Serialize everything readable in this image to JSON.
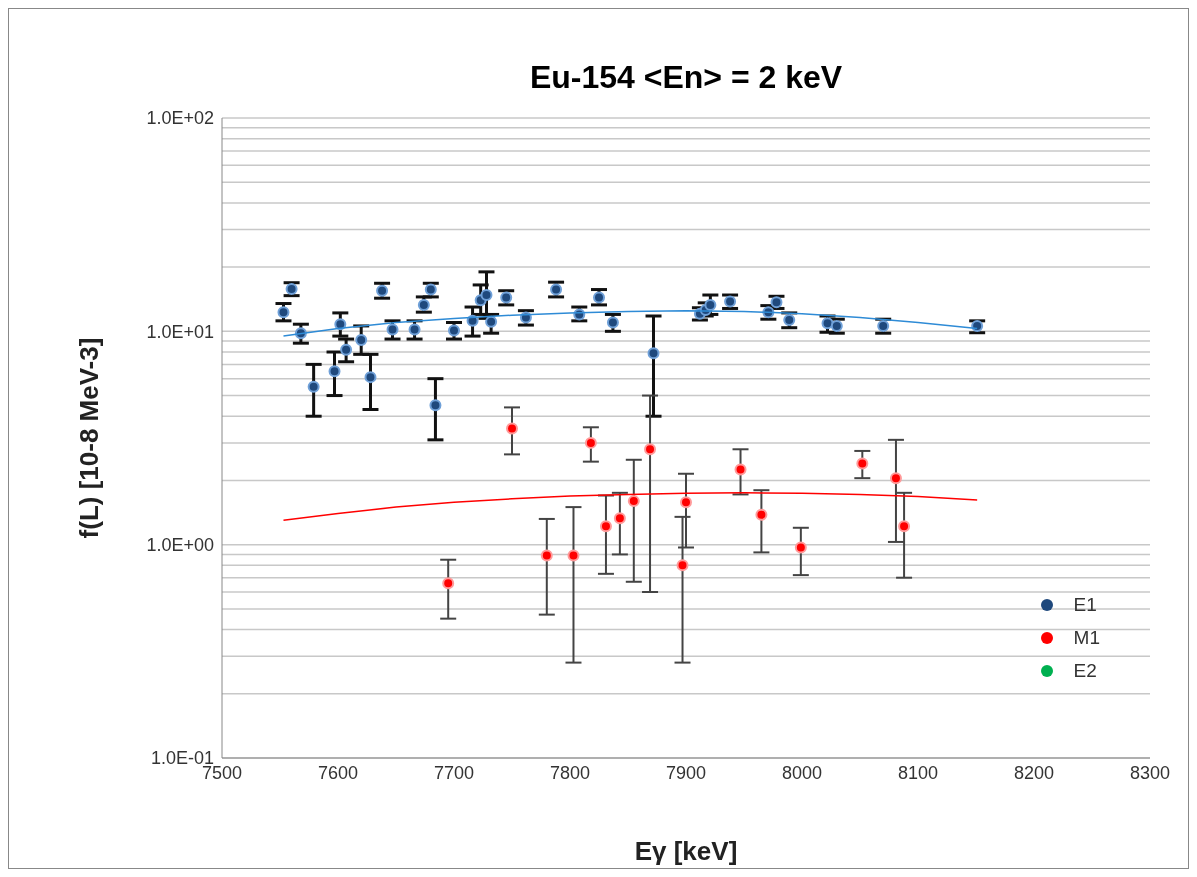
{
  "chart_data": {
    "type": "scatter",
    "title": "Eu-154 <En> = 2 keV",
    "xlabel": "Eγ [keV]",
    "ylabel": "f(L) [10-8 MeV-3]",
    "log": "y",
    "grid": "y",
    "legend": "right",
    "xlim": [
      7500,
      8300
    ],
    "xticks": [
      7500,
      7600,
      7700,
      7800,
      7900,
      8000,
      8100,
      8200,
      8300
    ],
    "ylim": [
      0.1,
      100
    ],
    "yticks": [
      {
        "value": 0.1,
        "label": "1.0E-01"
      },
      {
        "value": 0.2,
        "label": null
      },
      {
        "value": 0.3,
        "label": null
      },
      {
        "value": 0.4,
        "label": null
      },
      {
        "value": 0.5,
        "label": null
      },
      {
        "value": 0.6,
        "label": null
      },
      {
        "value": 0.7,
        "label": null
      },
      {
        "value": 0.8,
        "label": null
      },
      {
        "value": 0.9,
        "label": null
      },
      {
        "value": 1,
        "label": "1.0E+00"
      },
      {
        "value": 2,
        "label": null
      },
      {
        "value": 3,
        "label": null
      },
      {
        "value": 4,
        "label": null
      },
      {
        "value": 5,
        "label": null
      },
      {
        "value": 6,
        "label": null
      },
      {
        "value": 7,
        "label": null
      },
      {
        "value": 8,
        "label": null
      },
      {
        "value": 9,
        "label": null
      },
      {
        "value": 10,
        "label": "1.0E+01"
      },
      {
        "value": 20,
        "label": null
      },
      {
        "value": 30,
        "label": null
      },
      {
        "value": 40,
        "label": null
      },
      {
        "value": 50,
        "label": null
      },
      {
        "value": 60,
        "label": null
      },
      {
        "value": 70,
        "label": null
      },
      {
        "value": 80,
        "label": null
      },
      {
        "value": 90,
        "label": null
      },
      {
        "value": 100,
        "label": "1.0E+02"
      }
    ],
    "series": [
      {
        "name": "E1",
        "marker": "circle",
        "color": "#1f497d",
        "x": [
          7553,
          7560,
          7568,
          7579,
          7597,
          7602,
          7607,
          7620,
          7628,
          7638,
          7647,
          7666,
          7674,
          7680,
          7684,
          7700,
          7716,
          7723,
          7728,
          7732,
          7745,
          7762,
          7788,
          7808,
          7825,
          7837,
          7872,
          7912,
          7917,
          7921,
          7938,
          7971,
          7978,
          7989,
          8022,
          8030,
          8070,
          8151
        ],
        "values": [
          12.3,
          15.8,
          9.8,
          5.5,
          6.5,
          10.8,
          8.2,
          9.1,
          6.1,
          15.5,
          10.2,
          10.2,
          13.3,
          15.7,
          4.5,
          10.1,
          11.2,
          14,
          14.8,
          11.1,
          14.4,
          11.6,
          15.7,
          12,
          14.4,
          11,
          7.9,
          12.1,
          12.6,
          13.3,
          13.8,
          12.3,
          13.7,
          11.3,
          10.9,
          10.6,
          10.6,
          10.6
        ],
        "errors": [
          [
            11.2,
            13.5
          ],
          [
            14.7,
            16.9
          ],
          [
            8.8,
            10.8
          ],
          [
            4,
            7
          ],
          [
            5,
            8
          ],
          [
            9.5,
            12.2
          ],
          [
            7.2,
            9.2
          ],
          [
            7.8,
            10.6
          ],
          [
            4.3,
            7.8
          ],
          [
            14.3,
            16.8
          ],
          [
            9.2,
            11.2
          ],
          [
            9.2,
            11.2
          ],
          [
            12.3,
            14.5
          ],
          [
            14.5,
            16.8
          ],
          [
            3.1,
            6
          ],
          [
            9.2,
            11
          ],
          [
            9.5,
            13
          ],
          [
            12,
            16.5
          ],
          [
            11.5,
            19
          ],
          [
            9.8,
            12
          ],
          [
            13.3,
            15.5
          ],
          [
            10.7,
            12.5
          ],
          [
            14.5,
            17
          ],
          [
            11.2,
            13
          ],
          [
            13.3,
            15.7
          ],
          [
            10,
            12
          ],
          [
            4,
            11.8
          ],
          [
            11.3,
            12.9
          ],
          [
            11.8,
            13.6
          ],
          [
            12,
            14.8
          ],
          [
            12.8,
            14.8
          ],
          [
            11.4,
            13.2
          ],
          [
            12.8,
            14.6
          ],
          [
            10.4,
            12.2
          ],
          [
            9.9,
            11.8
          ],
          [
            9.8,
            11.4
          ],
          [
            9.8,
            11.4
          ],
          [
            9.85,
            11.2
          ]
        ]
      },
      {
        "name": "M1",
        "marker": "circle",
        "color": "#ff0000",
        "x": [
          7695,
          7750,
          7780,
          7803,
          7818,
          7831,
          7843,
          7855,
          7869,
          7897,
          7900,
          7947,
          7965,
          7999,
          8052,
          8081,
          8088
        ],
        "values": [
          0.66,
          3.5,
          0.89,
          0.89,
          3,
          1.22,
          1.33,
          1.6,
          2.8,
          0.8,
          1.58,
          2.25,
          1.38,
          0.97,
          2.4,
          2.05,
          1.22
        ],
        "errors": [
          [
            0.45,
            0.85
          ],
          [
            2.65,
            4.4
          ],
          [
            0.47,
            1.32
          ],
          [
            0.28,
            1.5
          ],
          [
            2.45,
            3.55
          ],
          [
            0.73,
            1.7
          ],
          [
            0.9,
            1.75
          ],
          [
            0.67,
            2.5
          ],
          [
            0.6,
            5
          ],
          [
            0.28,
            1.35
          ],
          [
            0.97,
            2.15
          ],
          [
            1.72,
            2.8
          ],
          [
            0.92,
            1.8
          ],
          [
            0.72,
            1.2
          ],
          [
            2.05,
            2.75
          ],
          [
            1.03,
            3.1
          ],
          [
            0.7,
            1.75
          ]
        ]
      },
      {
        "name": "E2",
        "marker": "circle",
        "color": "#00b050"
      },
      {
        "type": "line",
        "marker": "none",
        "line_style": "solid",
        "color": "#2e8bd6",
        "x": [
          7553,
          7600,
          7650,
          7700,
          7750,
          7800,
          7850,
          7900,
          7950,
          8000,
          8050,
          8100,
          8151
        ],
        "values": [
          9.5,
          10.3,
          11,
          11.5,
          11.9,
          12.2,
          12.4,
          12.5,
          12.4,
          12.1,
          11.6,
          11,
          10.3
        ]
      },
      {
        "type": "line",
        "marker": "none",
        "line_style": "solid",
        "color": "#ff0000",
        "x": [
          7553,
          7600,
          7650,
          7700,
          7750,
          7800,
          7850,
          7900,
          7950,
          8000,
          8050,
          8100,
          8151
        ],
        "values": [
          1.3,
          1.4,
          1.5,
          1.58,
          1.64,
          1.69,
          1.72,
          1.74,
          1.75,
          1.74,
          1.72,
          1.68,
          1.62
        ]
      }
    ]
  }
}
